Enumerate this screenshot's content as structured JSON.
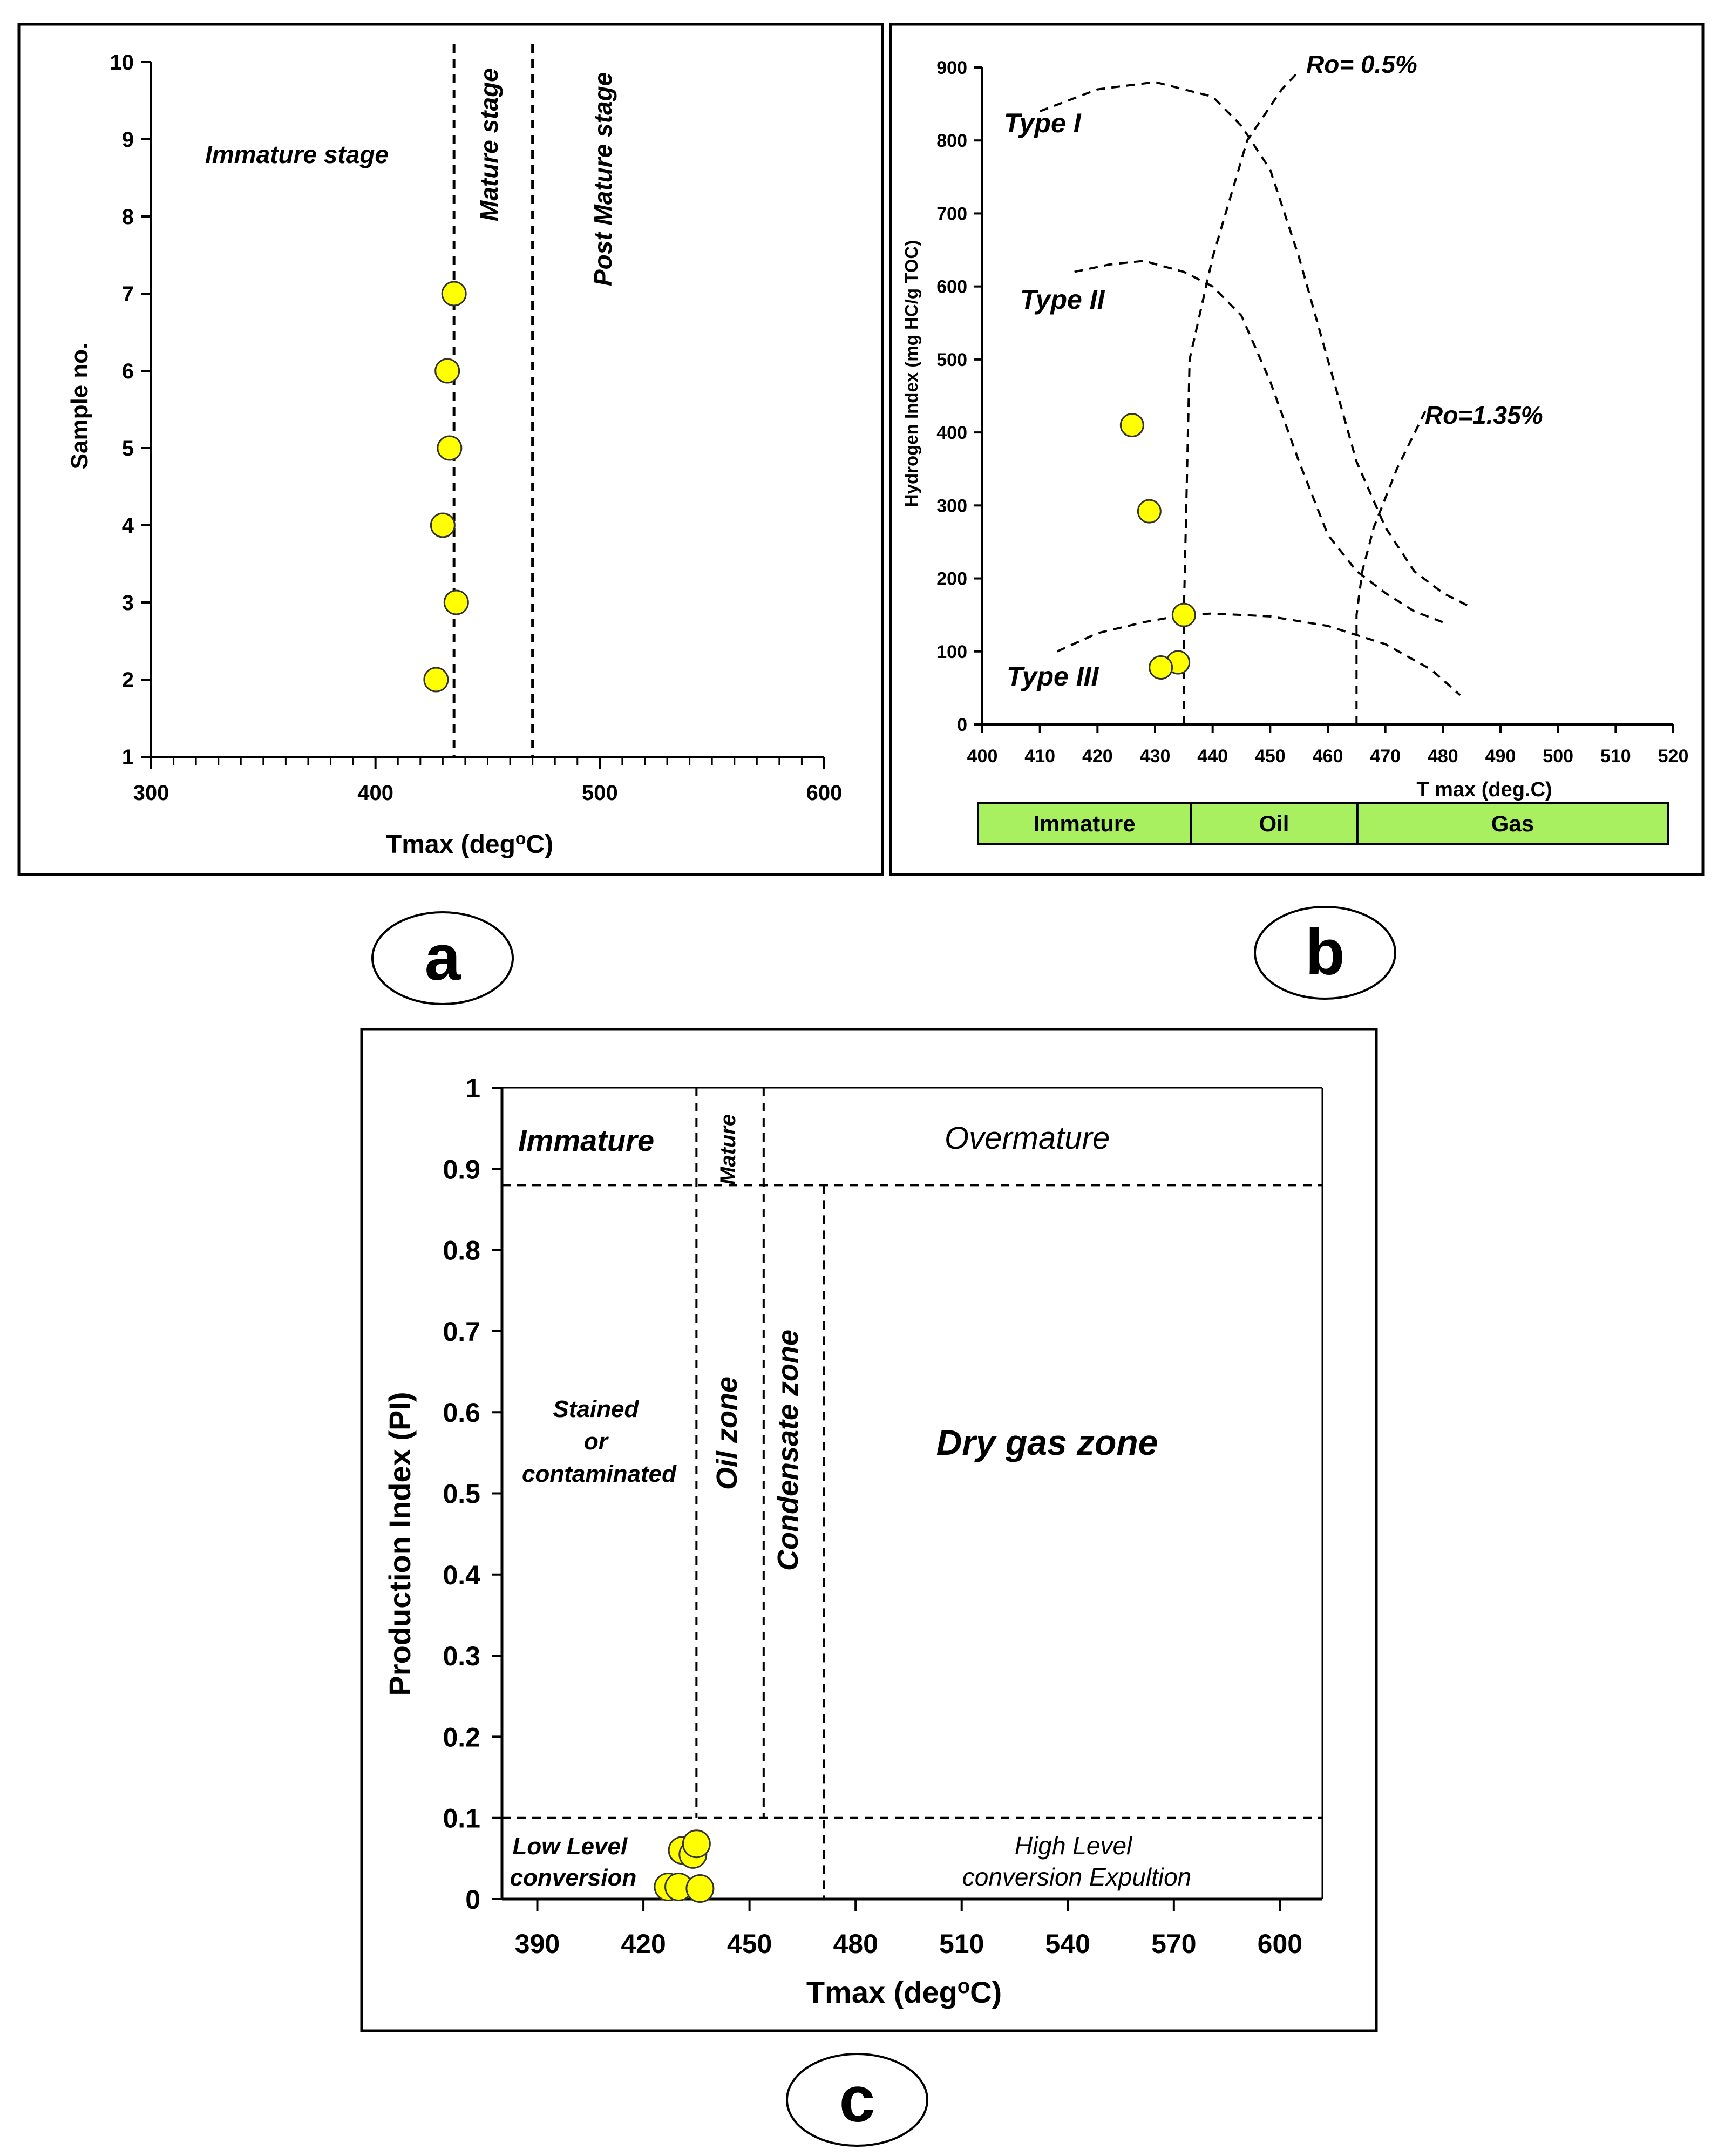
{
  "colors": {
    "point_fill": "#ffff00",
    "point_stroke": "#333333",
    "bar_fill": "#a8f060",
    "line": "#000000"
  },
  "panel_labels": [
    "a",
    "b",
    "c"
  ],
  "chart_data": [
    {
      "panel": "a",
      "type": "scatter",
      "xlabel_main": "Tmax (deg",
      "xlabel_sup": "o",
      "xlabel_end": "C)",
      "ylabel": "Sample no.",
      "xlim": [
        300,
        600
      ],
      "ylim": [
        1,
        10
      ],
      "x_ticks": [
        300,
        400,
        500,
        600
      ],
      "y_ticks": [
        1,
        2,
        3,
        4,
        5,
        6,
        7,
        8,
        9,
        10
      ],
      "points": [
        {
          "x": 435,
          "y": 7
        },
        {
          "x": 432,
          "y": 6
        },
        {
          "x": 433,
          "y": 5
        },
        {
          "x": 430,
          "y": 4
        },
        {
          "x": 436,
          "y": 3
        },
        {
          "x": 427,
          "y": 2
        }
      ],
      "boundaries": [
        435,
        470
      ],
      "stage_labels": {
        "immature": "Immature stage",
        "mature": "Mature stage",
        "post_mature": "Post Mature stage"
      }
    },
    {
      "panel": "b",
      "type": "scatter",
      "xlabel": "T max (deg.C)",
      "ylabel": "Hydrogen Index (mg HC/g TOC)",
      "xlim": [
        400,
        520
      ],
      "ylim": [
        0,
        900
      ],
      "x_ticks": [
        400,
        410,
        420,
        430,
        440,
        450,
        460,
        470,
        480,
        490,
        500,
        510,
        520
      ],
      "y_ticks": [
        0,
        100,
        200,
        300,
        400,
        500,
        600,
        700,
        800,
        900
      ],
      "points": [
        {
          "x": 426,
          "y": 410
        },
        {
          "x": 429,
          "y": 292
        },
        {
          "x": 435,
          "y": 150
        },
        {
          "x": 434,
          "y": 85
        },
        {
          "x": 431,
          "y": 78
        }
      ],
      "curves": [
        {
          "name": "Type I",
          "x": [
            410,
            420,
            430,
            440,
            445,
            450,
            455,
            460,
            465,
            470,
            475,
            480,
            485
          ],
          "y": [
            840,
            870,
            880,
            860,
            820,
            760,
            640,
            500,
            360,
            270,
            210,
            180,
            160
          ]
        },
        {
          "name": "Type II",
          "x": [
            416,
            422,
            428,
            435,
            440,
            445,
            450,
            455,
            460,
            465,
            470,
            475,
            480
          ],
          "y": [
            620,
            630,
            635,
            620,
            600,
            560,
            470,
            360,
            260,
            210,
            180,
            155,
            140
          ]
        },
        {
          "name": "Type III",
          "x": [
            413,
            420,
            428,
            435,
            440,
            450,
            460,
            470,
            478,
            483
          ],
          "y": [
            100,
            125,
            140,
            150,
            152,
            148,
            135,
            110,
            75,
            40
          ]
        }
      ],
      "iso_lines": [
        {
          "label": "Ro= 0.5%",
          "x": [
            435,
            435,
            436,
            440,
            446,
            452,
            455
          ],
          "y": [
            0,
            150,
            500,
            640,
            800,
            870,
            895
          ]
        },
        {
          "label": "Ro=1.35%",
          "x": [
            465,
            465,
            466,
            468,
            472,
            477
          ],
          "y": [
            0,
            150,
            210,
            270,
            350,
            430
          ]
        }
      ],
      "curve_labels": [
        "Type I",
        "Type II",
        "Type III"
      ],
      "bar_segments": [
        {
          "label": "Immature",
          "from": 400,
          "to": 437
        },
        {
          "label": "Oil",
          "from": 437,
          "to": 466
        },
        {
          "label": "Gas",
          "from": 466,
          "to": 520
        }
      ]
    },
    {
      "panel": "c",
      "type": "scatter",
      "xlabel_main": "Tmax (deg",
      "xlabel_sup": "o",
      "xlabel_end": "C)",
      "ylabel": "Production Index (PI)",
      "xlim": [
        380,
        612
      ],
      "ylim": [
        0,
        1
      ],
      "x_ticks": [
        390,
        420,
        450,
        480,
        510,
        540,
        570,
        600
      ],
      "y_ticks": [
        0,
        0.1,
        0.2,
        0.3,
        0.4,
        0.5,
        0.6,
        0.7,
        0.8,
        0.9,
        1
      ],
      "points": [
        {
          "x": 431,
          "y": 0.06
        },
        {
          "x": 434,
          "y": 0.055
        },
        {
          "x": 435,
          "y": 0.068
        },
        {
          "x": 427,
          "y": 0.015
        },
        {
          "x": 430,
          "y": 0.015
        },
        {
          "x": 436,
          "y": 0.013
        }
      ],
      "v_lines": [
        {
          "x": 435,
          "from": 0.1,
          "to": 1
        },
        {
          "x": 454,
          "from": 0.1,
          "to": 1
        },
        {
          "x": 471,
          "from": 0,
          "to": 0.88
        }
      ],
      "h_lines": [
        0.88,
        0.1
      ],
      "labels": {
        "immature": "Immature",
        "mature": "Mature",
        "overmature": "Overmature",
        "stained": [
          "Stained",
          "or",
          "contaminated"
        ],
        "oil_zone": "Oil zone",
        "condensate_zone": "Condensate zone",
        "dry_gas_zone": "Dry gas zone",
        "low_level": [
          "Low Level",
          "conversion"
        ],
        "high_level": [
          "High Level",
          "conversion Expultion"
        ]
      }
    }
  ]
}
